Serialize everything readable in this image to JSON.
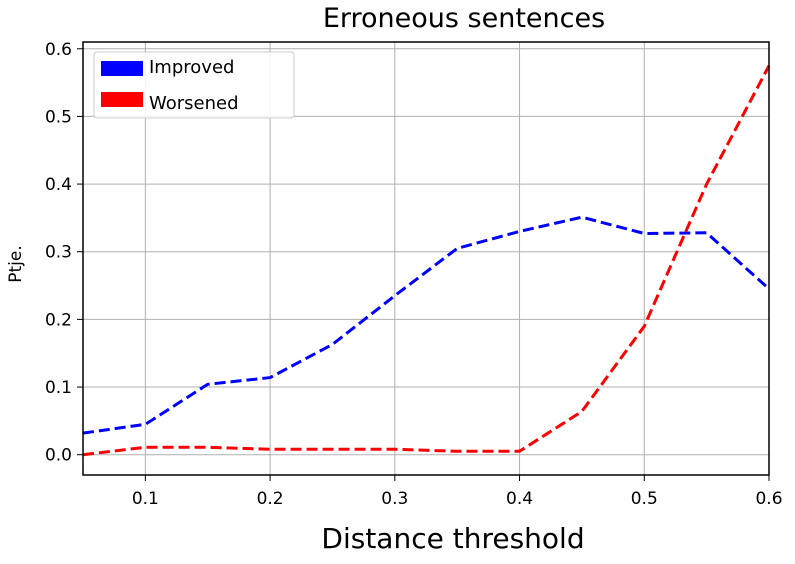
{
  "chart_data": {
    "type": "line",
    "title": "Erroneous sentences",
    "xlabel": "Distance threshold",
    "ylabel": "Ptje.",
    "xlim": [
      0.05,
      0.6
    ],
    "ylim": [
      -0.03,
      0.61
    ],
    "xticks": [
      "0.1",
      "0.2",
      "0.3",
      "0.4",
      "0.5",
      "0.6"
    ],
    "yticks": [
      "0.0",
      "0.1",
      "0.2",
      "0.3",
      "0.4",
      "0.5",
      "0.6"
    ],
    "grid": true,
    "legend": "top-left",
    "x": [
      0.05,
      0.1,
      0.15,
      0.2,
      0.25,
      0.3,
      0.35,
      0.4,
      0.45,
      0.5,
      0.55,
      0.6
    ],
    "series": [
      {
        "name": "Improved",
        "color": "#0000ff",
        "linestyle": "dashed",
        "values": [
          0.032,
          0.045,
          0.104,
          0.114,
          0.163,
          0.235,
          0.305,
          0.33,
          0.351,
          0.327,
          0.328,
          0.245
        ]
      },
      {
        "name": "Worsened",
        "color": "#ff0000",
        "linestyle": "dashed",
        "values": [
          0.0,
          0.011,
          0.011,
          0.008,
          0.008,
          0.008,
          0.005,
          0.005,
          0.064,
          0.19,
          0.4,
          0.575
        ]
      }
    ]
  }
}
